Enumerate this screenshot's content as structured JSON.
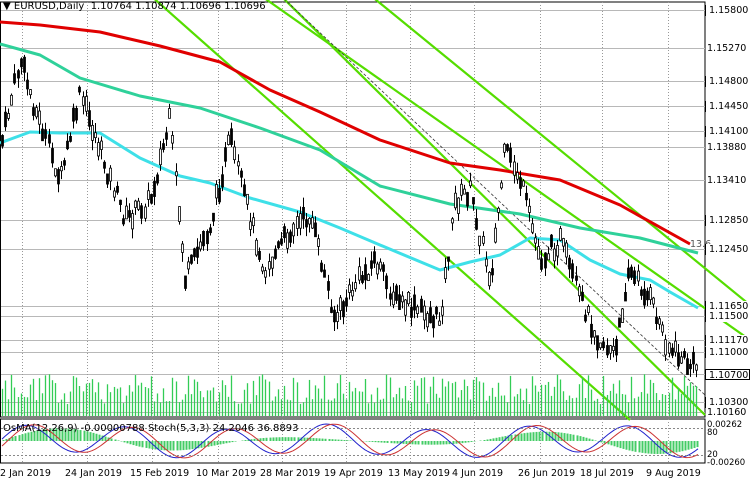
{
  "header": {
    "symbol_label": "EURUSD,Daily",
    "ohlc": "1.10764 1.10874 1.10696 1.10696",
    "menu_icon": "triangle-down-icon"
  },
  "oscillator": {
    "label": "OsMA(12,26,9) -0.00000788",
    "stoch_label": "Stoch(5,3,3) 24.2046 36.8893",
    "scale": [
      "0.00262",
      "80",
      "20",
      "-0.00260"
    ]
  },
  "price_axis": {
    "labels": [
      "1.15800",
      "1.15270",
      "1.14800",
      "1.14450",
      "1.14100",
      "1.13880",
      "1.13410",
      "1.12850",
      "1.12450",
      "1.11650",
      "1.11500",
      "1.11170",
      "1.11000",
      "1.10700",
      "1.10300",
      "1.10160"
    ],
    "boxed": [
      "1.15800",
      "1.14800",
      "1.14450",
      "1.14100",
      "1.12850",
      "1.12450",
      "1.11650",
      "1.11500",
      "1.11170",
      "1.11000",
      "1.10700",
      "1.10300"
    ],
    "current_price": "1.10700",
    "ma_value": "13.6"
  },
  "time_axis": {
    "labels": [
      "2 Jan 2019",
      "24 Jan 2019",
      "15 Feb 2019",
      "10 Mar 2019",
      "28 Mar 2019",
      "19 Apr 2019",
      "13 May 2019",
      "4 Jun 2019",
      "26 Jun 2019",
      "18 Jul 2019",
      "9 Aug 2019"
    ]
  },
  "colors": {
    "ma_slow": "#e00000",
    "ma_mid": "#2fd19a",
    "ma_fast": "#3ee0e8",
    "channel": "#55dd00",
    "candles": "#000000",
    "volume": "#33cc55",
    "osma": "#44cc66",
    "stoch_main": "#2222cc",
    "stoch_signal": "#cc3333"
  }
}
